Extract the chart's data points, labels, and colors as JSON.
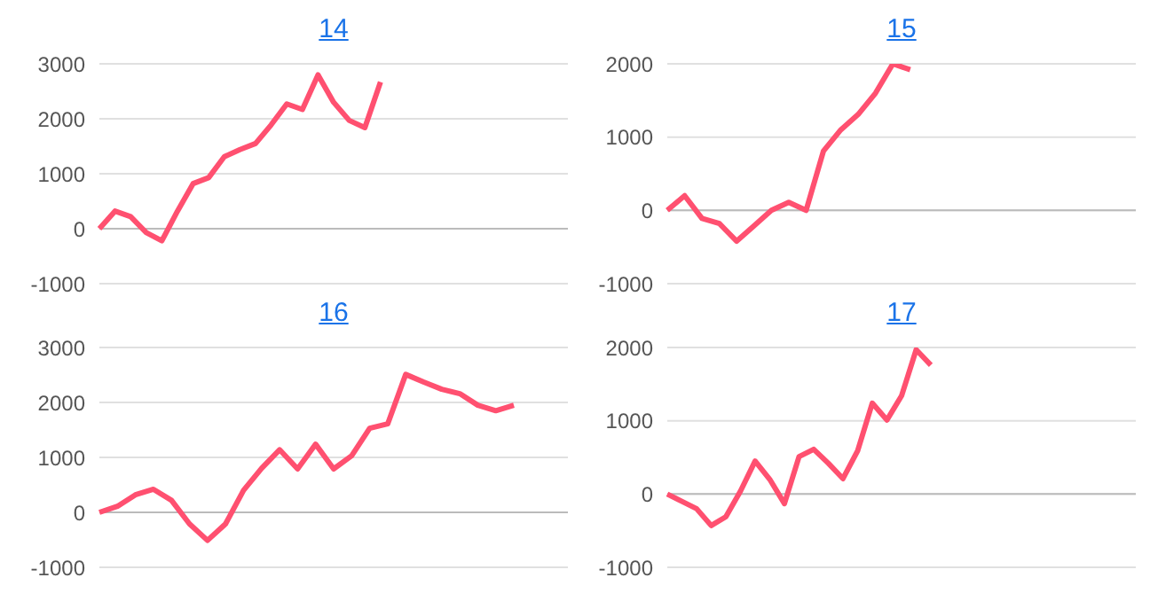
{
  "chart_data": [
    {
      "type": "line",
      "title": "14",
      "categories": [
        null,
        null,
        null,
        null,
        null,
        null,
        null,
        null,
        null,
        null,
        null,
        null,
        null,
        null,
        null,
        null,
        null,
        null,
        null,
        null,
        null,
        null,
        null,
        null,
        null,
        null,
        null,
        null,
        null,
        null,
        null
      ],
      "series": [
        {
          "color": "#ff5070",
          "values": [
            0,
            320,
            220,
            -70,
            -220,
            320,
            820,
            930,
            1310,
            1440,
            1550,
            1890,
            2270,
            2170,
            2800,
            2300,
            1970,
            1840,
            2670,
            null,
            null,
            null,
            null,
            null,
            null,
            null,
            null,
            null,
            null,
            null,
            null
          ]
        }
      ],
      "ylim": [
        -1000,
        3000
      ],
      "yticks": [
        -1000,
        0,
        1000,
        2000,
        3000
      ],
      "grid": "y",
      "legend": false,
      "marker": "none",
      "line_style": "solid"
    },
    {
      "type": "line",
      "title": "15",
      "categories": [
        null,
        null,
        null,
        null,
        null,
        null,
        null,
        null,
        null,
        null,
        null,
        null,
        null,
        null,
        null,
        null,
        null,
        null,
        null,
        null,
        null,
        null,
        null,
        null,
        null,
        null,
        null,
        null
      ],
      "series": [
        {
          "color": "#ff5070",
          "values": [
            0,
            200,
            -110,
            -180,
            -420,
            -210,
            0,
            110,
            0,
            810,
            1100,
            1310,
            1600,
            2000,
            1920,
            null,
            null,
            null,
            null,
            null,
            null,
            null,
            null,
            null,
            null,
            null,
            null,
            null
          ]
        }
      ],
      "ylim": [
        -1000,
        2000
      ],
      "yticks": [
        -1000,
        0,
        1000,
        2000
      ],
      "grid": "y",
      "legend": false,
      "marker": "none",
      "line_style": "solid"
    },
    {
      "type": "line",
      "title": "16",
      "categories": [
        null,
        null,
        null,
        null,
        null,
        null,
        null,
        null,
        null,
        null,
        null,
        null,
        null,
        null,
        null,
        null,
        null,
        null,
        null,
        null,
        null,
        null,
        null,
        null,
        null,
        null,
        null
      ],
      "series": [
        {
          "color": "#ff5070",
          "values": [
            0,
            110,
            320,
            420,
            220,
            -210,
            -510,
            -210,
            400,
            800,
            1140,
            790,
            1240,
            790,
            1030,
            1530,
            1610,
            2510,
            2370,
            2240,
            2160,
            1950,
            1850,
            1950,
            null,
            null,
            null
          ]
        }
      ],
      "ylim": [
        -1000,
        3000
      ],
      "yticks": [
        -1000,
        0,
        1000,
        2000,
        3000
      ],
      "grid": "y",
      "legend": false,
      "marker": "none",
      "line_style": "solid"
    },
    {
      "type": "line",
      "title": "17",
      "categories": [
        null,
        null,
        null,
        null,
        null,
        null,
        null,
        null,
        null,
        null,
        null,
        null,
        null,
        null,
        null,
        null,
        null,
        null,
        null,
        null,
        null,
        null,
        null,
        null,
        null,
        null,
        null,
        null,
        null,
        null,
        null,
        null,
        null
      ],
      "series": [
        {
          "color": "#ff5070",
          "values": [
            0,
            -100,
            -200,
            -430,
            -310,
            40,
            450,
            200,
            -130,
            510,
            610,
            420,
            210,
            590,
            1240,
            1010,
            1340,
            1970,
            1760,
            null,
            null,
            null,
            null,
            null,
            null,
            null,
            null,
            null,
            null,
            null,
            null,
            null,
            null
          ]
        }
      ],
      "ylim": [
        -1000,
        2000
      ],
      "yticks": [
        -1000,
        0,
        1000,
        2000
      ],
      "grid": "y",
      "legend": false,
      "marker": "none",
      "line_style": "solid"
    }
  ]
}
